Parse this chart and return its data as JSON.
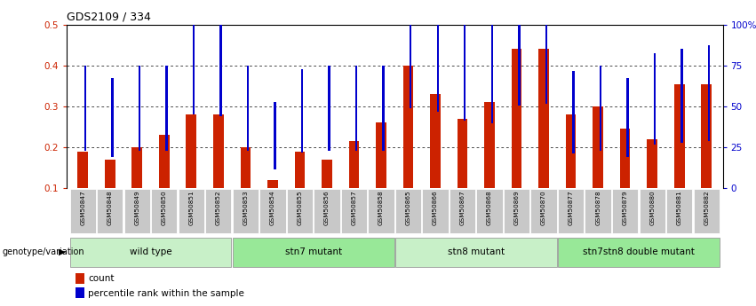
{
  "title": "GDS2109 / 334",
  "samples": [
    "GSM50847",
    "GSM50848",
    "GSM50849",
    "GSM50850",
    "GSM50851",
    "GSM50852",
    "GSM50853",
    "GSM50854",
    "GSM50855",
    "GSM50856",
    "GSM50857",
    "GSM50858",
    "GSM50865",
    "GSM50866",
    "GSM50867",
    "GSM50868",
    "GSM50869",
    "GSM50870",
    "GSM50877",
    "GSM50878",
    "GSM50879",
    "GSM50880",
    "GSM50881",
    "GSM50882"
  ],
  "counts": [
    0.19,
    0.17,
    0.2,
    0.23,
    0.28,
    0.28,
    0.2,
    0.12,
    0.19,
    0.17,
    0.215,
    0.26,
    0.4,
    0.33,
    0.27,
    0.31,
    0.44,
    0.44,
    0.28,
    0.3,
    0.245,
    0.22,
    0.355,
    0.355
  ],
  "percentile": [
    0.2,
    0.185,
    0.2,
    0.2,
    0.29,
    0.285,
    0.2,
    0.155,
    0.195,
    0.2,
    0.2,
    0.2,
    0.305,
    0.295,
    0.275,
    0.268,
    0.31,
    0.315,
    0.193,
    0.2,
    0.185,
    0.215,
    0.22,
    0.225
  ],
  "groups": [
    {
      "label": "wild type",
      "start": 0,
      "end": 6,
      "color": "#c8f0c8"
    },
    {
      "label": "stn7 mutant",
      "start": 6,
      "end": 12,
      "color": "#98e898"
    },
    {
      "label": "stn8 mutant",
      "start": 12,
      "end": 18,
      "color": "#c8f0c8"
    },
    {
      "label": "stn7stn8 double mutant",
      "start": 18,
      "end": 24,
      "color": "#98e898"
    }
  ],
  "bar_color": "#cc2200",
  "dot_color": "#0000cc",
  "ymin": 0.1,
  "ymax": 0.5,
  "yticks_left": [
    0.1,
    0.2,
    0.3,
    0.4,
    0.5
  ],
  "yticks_right": [
    0,
    25,
    50,
    75,
    100
  ],
  "ytick_labels_right": [
    "0",
    "25",
    "50",
    "75",
    "100%"
  ],
  "left_color": "#cc2200",
  "right_color": "#0000cc",
  "legend_count": "count",
  "legend_percentile": "percentile rank within the sample",
  "genotype_label": "genotype/variation",
  "xticklabel_bg": "#c8c8c8"
}
